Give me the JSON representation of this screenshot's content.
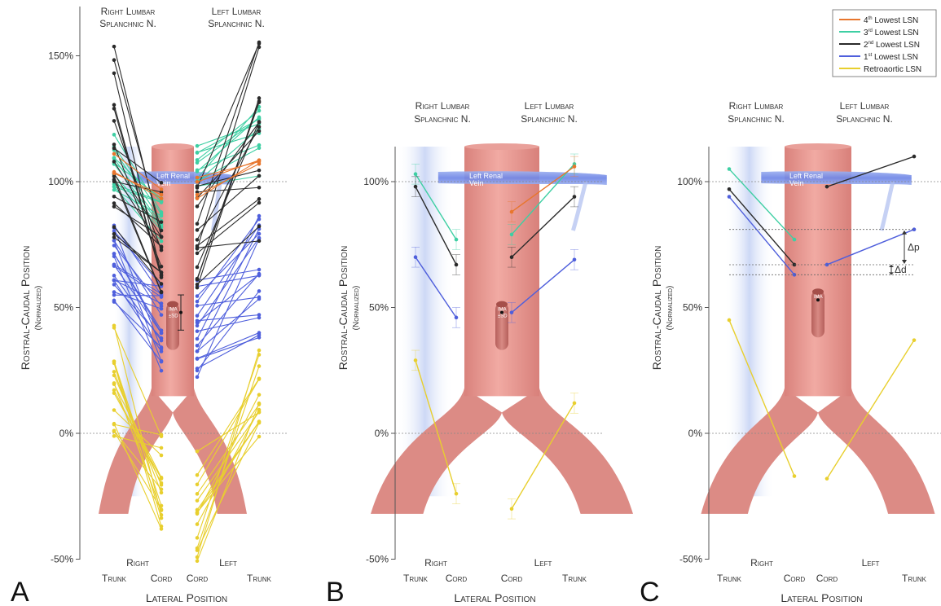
{
  "panels": [
    {
      "letter": "A",
      "header_right": [
        "Right Lumbar",
        "Splanchnic N."
      ],
      "header_left": [
        "Left Lumbar",
        "Splanchnic N."
      ],
      "y_ticks": [
        "150%",
        "100%",
        "50%",
        "0%",
        "-50%"
      ],
      "vein_label": [
        "Left Renal",
        "Vein"
      ],
      "ima_label": [
        "IMA",
        "±SD"
      ],
      "x_group_right": "Right",
      "x_group_left": "Left",
      "x_cols": [
        "Trunk",
        "Cord",
        "Cord",
        "Trunk"
      ],
      "x_title": "Lateral Position"
    },
    {
      "letter": "B",
      "header_right": [
        "Right Lumbar",
        "Splanchnic N."
      ],
      "header_left": [
        "Left Lumbar",
        "Splanchnic N."
      ],
      "y_ticks": [
        "100%",
        "50%",
        "0%",
        "-50%"
      ],
      "vein_label": [
        "Left Renal",
        "Vein"
      ],
      "ima_label": [
        "IMA",
        "±SD"
      ],
      "x_group_right": "Right",
      "x_group_left": "Left",
      "x_cols": [
        "Trunk",
        "Cord",
        "Cord",
        "Trunk"
      ],
      "x_title": "Lateral Position"
    },
    {
      "letter": "C",
      "header_right": [
        "Right Lumbar",
        "Splanchnic N."
      ],
      "header_left": [
        "Left Lumbar",
        "Splanchnic N."
      ],
      "y_ticks": [
        "100%",
        "50%",
        "0%",
        "-50%"
      ],
      "vein_label": [
        "Left Renal",
        "Vein"
      ],
      "ima_label": [
        "IMA"
      ],
      "delta_p": "Δp",
      "delta_d": "Δd",
      "x_group_right": "Right",
      "x_group_left": "Left",
      "x_cols": [
        "Trunk",
        "Cord",
        "Cord",
        "Trunk"
      ],
      "x_title": "Lateral Position"
    }
  ],
  "y_axis_title": "Rostral-Caudal Position",
  "y_axis_subtitle": "(Normalized)",
  "legend": [
    {
      "pre": "4",
      "sup": "th",
      "post": " Lowest LSN",
      "color": "#e8762d"
    },
    {
      "pre": "3",
      "sup": "rd",
      "post": " Lowest LSN",
      "color": "#3ecfa3"
    },
    {
      "pre": "2",
      "sup": "nd",
      "post": " Lowest LSN",
      "color": "#2a2a2a"
    },
    {
      "pre": "1",
      "sup": "st",
      "post": " Lowest LSN",
      "color": "#4f5fdc"
    },
    {
      "pre": "Retroaortic LSN",
      "sup": "",
      "post": "",
      "color": "#e8cf2e"
    }
  ],
  "chart_data": {
    "type": "line",
    "x_categories": [
      "Right Trunk",
      "Right Cord",
      "Left Cord",
      "Left Trunk"
    ],
    "ylim": [
      -50,
      160
    ],
    "panel_B": {
      "ima_mean": 48,
      "series": [
        {
          "name": "3rd Lowest LSN",
          "color": "#3ecfa3",
          "right": [
            103,
            77
          ],
          "left": [
            79,
            107
          ]
        },
        {
          "name": "2nd Lowest LSN",
          "color": "#2a2a2a",
          "right": [
            98,
            67
          ],
          "left": [
            70,
            94
          ]
        },
        {
          "name": "1st Lowest LSN",
          "color": "#4f5fdc",
          "right": [
            70,
            46
          ],
          "left": [
            48,
            69
          ]
        },
        {
          "name": "Retroaortic LSN",
          "color": "#e8cf2e",
          "right": [
            29,
            -24
          ],
          "left": [
            -30,
            12
          ]
        },
        {
          "name": "4th Lowest LSN",
          "color": "#e8762d",
          "right": null,
          "left": [
            88,
            106
          ]
        }
      ]
    },
    "panel_C": {
      "ima_mean": 53,
      "series": [
        {
          "name": "3rd Lowest LSN",
          "color": "#3ecfa3",
          "right": [
            105,
            77
          ],
          "left": null
        },
        {
          "name": "2nd Lowest LSN",
          "color": "#2a2a2a",
          "right": [
            97,
            67
          ],
          "left": [
            98,
            110
          ]
        },
        {
          "name": "1st Lowest LSN",
          "color": "#4f5fdc",
          "right": [
            94,
            63
          ],
          "left": [
            67,
            81
          ]
        },
        {
          "name": "Retroaortic LSN",
          "color": "#e8cf2e",
          "right": [
            45,
            -17
          ],
          "left": [
            -18,
            37
          ]
        }
      ]
    },
    "panel_A": {
      "ima_mean": 48,
      "ima_sd": 7,
      "series_counts": {
        "4th Lowest LSN": 5,
        "3rd Lowest LSN": 22,
        "2nd Lowest LSN": 34,
        "1st Lowest LSN": 38,
        "Retroaortic LSN": 30
      },
      "ranges": {
        "4th Lowest LSN": {
          "right": [
            100,
            112,
            92,
            100
          ],
          "left": [
            92,
            102,
            100,
            112
          ]
        },
        "3rd Lowest LSN": {
          "right": [
            96,
            121,
            75,
            94
          ],
          "left": [
            85,
            115,
            100,
            130
          ]
        },
        "2nd Lowest LSN": {
          "right": [
            75,
            157,
            55,
            100
          ],
          "left": [
            55,
            103,
            62,
            158
          ]
        },
        "1st Lowest LSN": {
          "right": [
            52,
            85,
            24,
            60
          ],
          "left": [
            22,
            68,
            38,
            90
          ]
        },
        "Retroaortic LSN": {
          "right": [
            -5,
            45,
            -40,
            0
          ],
          "left": [
            -53,
            -5,
            -5,
            36
          ]
        }
      }
    }
  }
}
